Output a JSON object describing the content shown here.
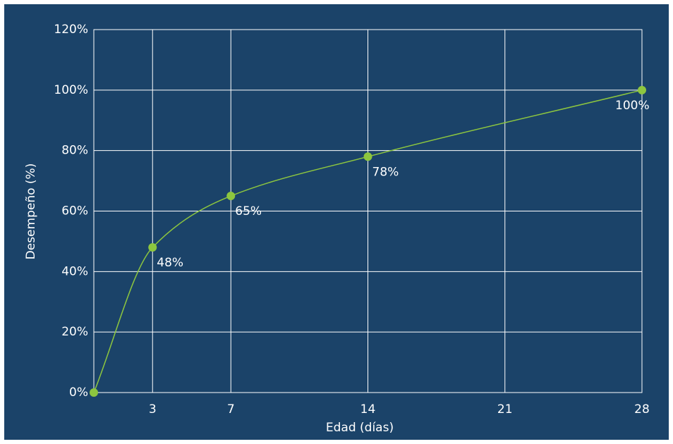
{
  "chart_data": {
    "type": "line",
    "x_label": "Edad (días)",
    "y_label": "Desempeño (%)",
    "x": [
      0,
      3,
      7,
      14,
      28
    ],
    "values": [
      0,
      48,
      65,
      78,
      100
    ],
    "value_labels": [
      null,
      "48%",
      "65%",
      "78%",
      "100%"
    ],
    "color": "#8dc63f",
    "xlim": [
      0,
      28
    ],
    "xticks": [
      3,
      7,
      14,
      21,
      28
    ],
    "ylim": [
      0,
      120
    ],
    "yticks": [
      {
        "value": 0,
        "label": "0%"
      },
      {
        "value": 20,
        "label": "20%"
      },
      {
        "value": 40,
        "label": "40%"
      },
      {
        "value": 60,
        "label": "60%"
      },
      {
        "value": 80,
        "label": "80%"
      },
      {
        "value": 100,
        "label": "100%"
      },
      {
        "value": 120,
        "label": "120%"
      }
    ],
    "grid": true
  }
}
